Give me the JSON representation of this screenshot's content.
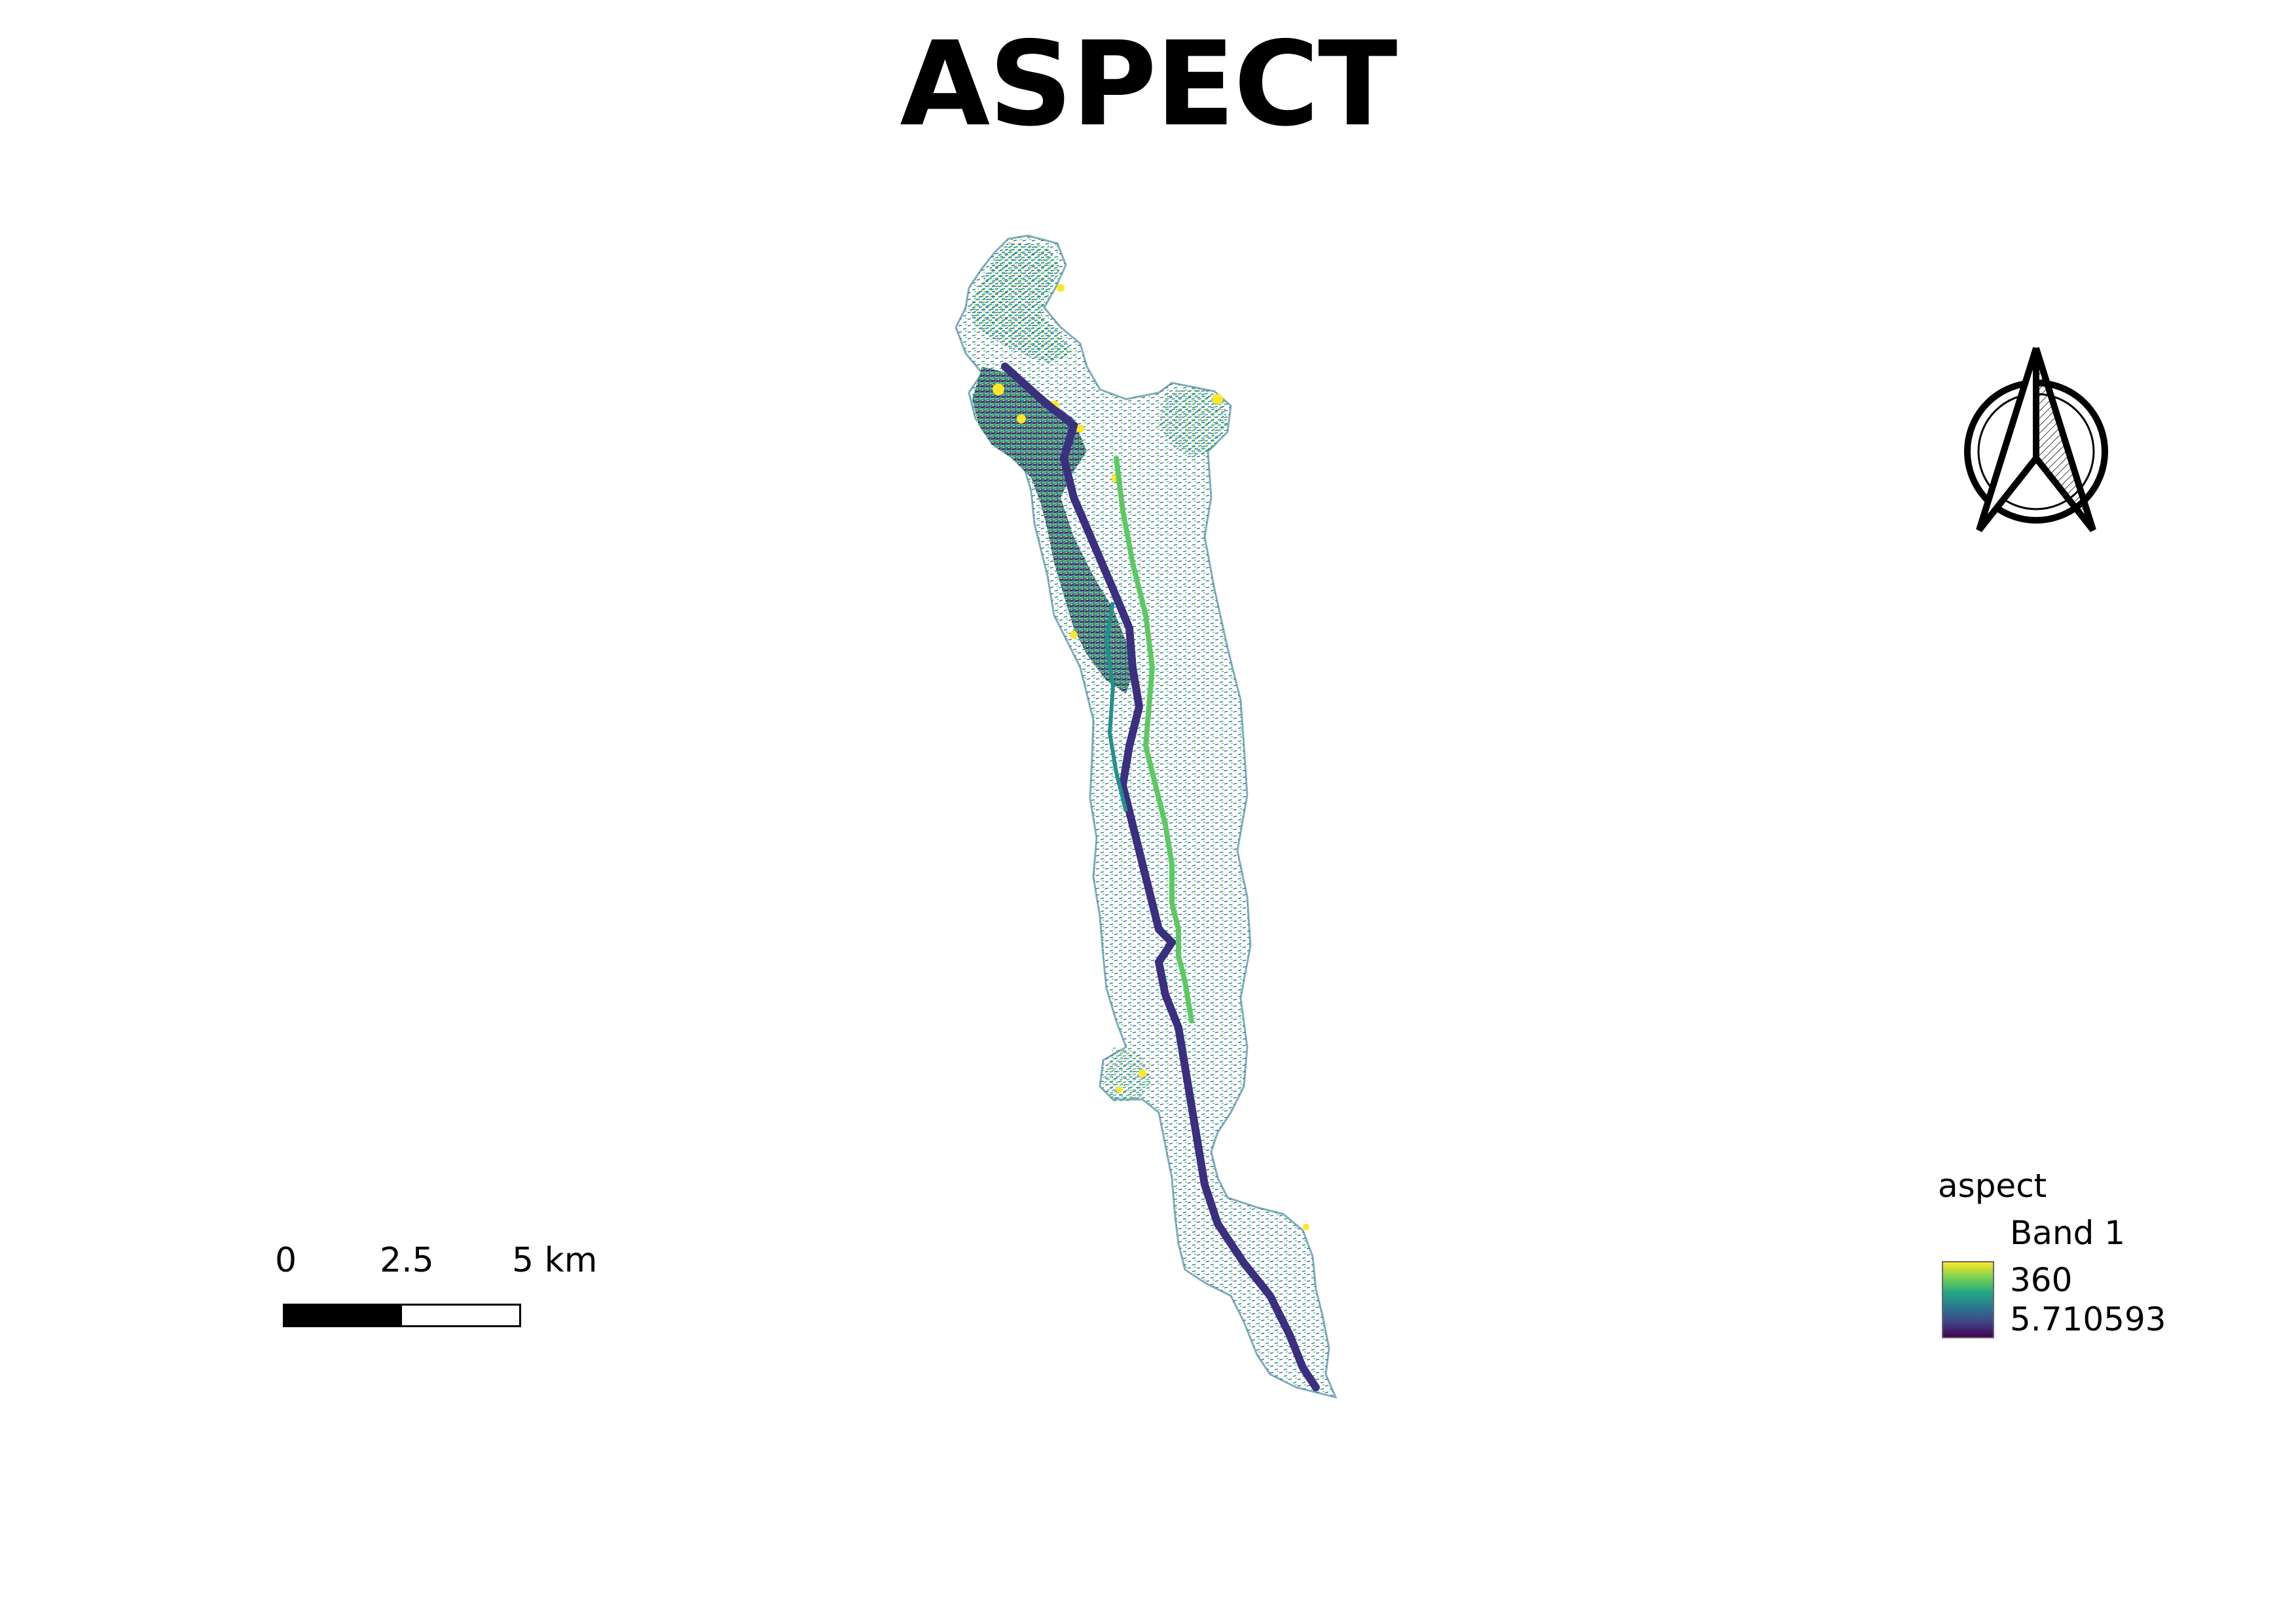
{
  "map": {
    "title": "ASPECT",
    "legend": {
      "layer_name": "aspect",
      "band_label": "Band 1",
      "max_label": "360",
      "min_label": "5.710593",
      "ramp_colors": [
        "#fde725",
        "#7ad151",
        "#22a884",
        "#2a788e",
        "#414487",
        "#440154"
      ]
    },
    "scale_bar": {
      "labels": [
        "0",
        "2.5",
        "5 km"
      ],
      "filled_fraction": 0.5
    },
    "north_arrow": {
      "icon": "north-arrow-icon"
    },
    "colors": {
      "low": "#440154",
      "dark_blue": "#3b2f7f",
      "teal": "#21918c",
      "green": "#5ec962",
      "yellow": "#fde725"
    }
  }
}
